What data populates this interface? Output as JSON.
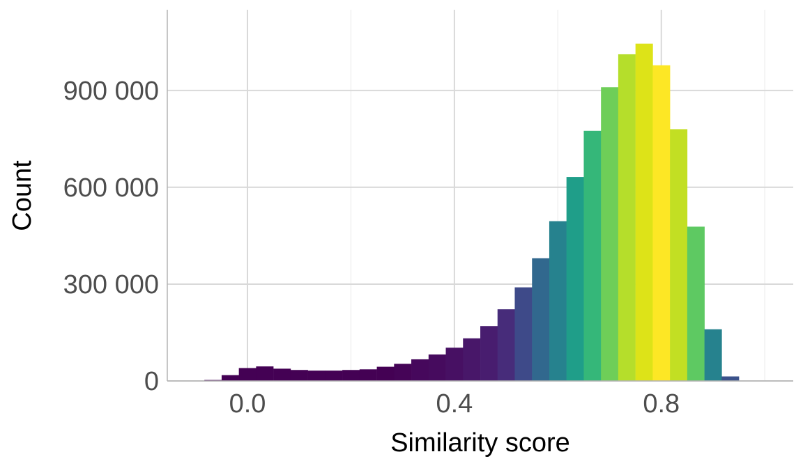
{
  "chart_data": {
    "type": "bar",
    "xlabel": "Similarity score",
    "ylabel": "Count",
    "xlim": [
      -0.155,
      1.055
    ],
    "ylim": [
      0,
      1150000
    ],
    "x_ticks": [
      0.0,
      0.4,
      0.8
    ],
    "x_tick_labels": [
      "0.0",
      "0.4",
      "0.8"
    ],
    "x_minor_ticks": [
      0.2,
      0.6,
      1.0
    ],
    "y_ticks": [
      0,
      300000,
      600000,
      900000
    ],
    "y_tick_labels": [
      "0",
      "300 000",
      "600 000",
      "900 000"
    ],
    "grid": true,
    "legend": "none",
    "bin_width": 0.0333,
    "bin_centers": [
      -0.0667,
      -0.0333,
      0.0,
      0.0333,
      0.0667,
      0.1,
      0.1333,
      0.1667,
      0.2,
      0.2333,
      0.2667,
      0.3,
      0.3333,
      0.3667,
      0.4,
      0.4333,
      0.4667,
      0.5,
      0.5333,
      0.5667,
      0.6,
      0.6333,
      0.6667,
      0.7,
      0.7333,
      0.7667,
      0.8,
      0.8333,
      0.8667,
      0.9,
      0.9333
    ],
    "values": [
      3000,
      18000,
      40000,
      45000,
      38000,
      34000,
      32000,
      32000,
      34000,
      36000,
      44000,
      53000,
      67000,
      82000,
      103000,
      132000,
      170000,
      222000,
      290000,
      380000,
      495000,
      632000,
      775000,
      910000,
      1012000,
      1045000,
      978000,
      780000,
      478000,
      160000,
      14000
    ],
    "colors": [
      "#440154",
      "#440154",
      "#440154",
      "#440154",
      "#440154",
      "#440154",
      "#440154",
      "#440154",
      "#440154",
      "#440154",
      "#440154",
      "#450457",
      "#46085c",
      "#460b5e",
      "#471063",
      "#481769",
      "#481d6f",
      "#472c7a",
      "#3e4a89",
      "#31688e",
      "#26828e",
      "#1f9e89",
      "#35b779",
      "#6ece58",
      "#b5de2b",
      "#dde318",
      "#fde725",
      "#c2df23",
      "#5ec962",
      "#26828e",
      "#3b528b"
    ]
  }
}
